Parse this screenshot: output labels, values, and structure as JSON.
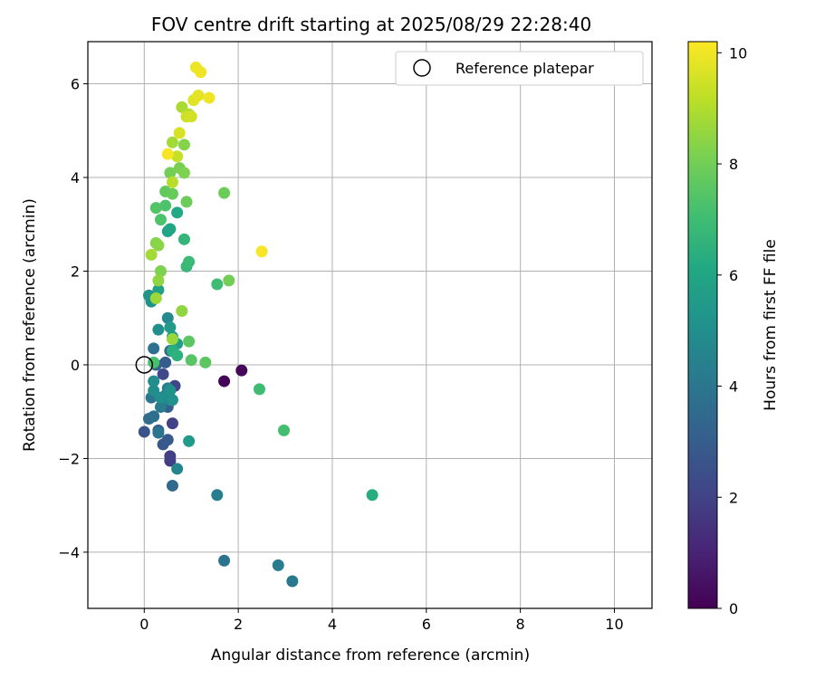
{
  "chart_data": {
    "type": "scatter",
    "title": "FOV centre drift starting at 2025/08/29 22:28:40",
    "xlabel": "Angular distance from reference (arcmin)",
    "ylabel": "Rotation from reference (arcmin)",
    "xlim": [
      -1.2,
      10.8
    ],
    "ylim": [
      -5.2,
      6.9
    ],
    "x_ticks": [
      0,
      2,
      4,
      6,
      8,
      10
    ],
    "y_ticks": [
      -4,
      -2,
      0,
      2,
      4,
      6
    ],
    "grid": true,
    "legend": {
      "placement": "top-right",
      "entries": [
        "Reference platepar"
      ]
    },
    "reference_point": {
      "x": 0,
      "y": 0
    },
    "colorbar": {
      "label": "Hours from first FF file",
      "range": [
        0,
        10.2
      ],
      "ticks": [
        0,
        2,
        4,
        6,
        8,
        10
      ],
      "colormap": "viridis"
    },
    "points": [
      {
        "x": 1.7,
        "y": -0.35,
        "c": 0.1
      },
      {
        "x": 2.07,
        "y": -0.12,
        "c": 0.2
      },
      {
        "x": 0.55,
        "y": -1.95,
        "c": 1.9
      },
      {
        "x": 0.55,
        "y": -2.05,
        "c": 1.8
      },
      {
        "x": 0.6,
        "y": -1.25,
        "c": 2.0
      },
      {
        "x": 0.4,
        "y": -0.2,
        "c": 2.2
      },
      {
        "x": 0.65,
        "y": -0.45,
        "c": 2.1
      },
      {
        "x": 0.0,
        "y": -1.43,
        "c": 2.6
      },
      {
        "x": 0.4,
        "y": -1.7,
        "c": 2.8
      },
      {
        "x": 0.5,
        "y": -1.6,
        "c": 2.9
      },
      {
        "x": 0.3,
        "y": -1.4,
        "c": 3.0
      },
      {
        "x": 0.5,
        "y": -0.9,
        "c": 3.1
      },
      {
        "x": 0.45,
        "y": 0.05,
        "c": 3.0
      },
      {
        "x": 0.25,
        "y": 0.0,
        "c": 3.2
      },
      {
        "x": 0.55,
        "y": 0.3,
        "c": 3.3
      },
      {
        "x": 0.6,
        "y": -2.58,
        "c": 3.5
      },
      {
        "x": 0.1,
        "y": -1.15,
        "c": 3.6
      },
      {
        "x": 0.2,
        "y": -1.1,
        "c": 3.7
      },
      {
        "x": 0.2,
        "y": 0.35,
        "c": 3.8
      },
      {
        "x": 0.15,
        "y": -0.7,
        "c": 4.0
      },
      {
        "x": 0.3,
        "y": -1.45,
        "c": 4.0
      },
      {
        "x": 0.35,
        "y": -0.9,
        "c": 4.2
      },
      {
        "x": 0.45,
        "y": -0.65,
        "c": 4.3
      },
      {
        "x": 0.5,
        "y": -0.5,
        "c": 4.4
      },
      {
        "x": 0.55,
        "y": -0.75,
        "c": 4.5
      },
      {
        "x": 0.7,
        "y": -2.22,
        "c": 4.6
      },
      {
        "x": 1.55,
        "y": -2.78,
        "c": 4.3
      },
      {
        "x": 1.7,
        "y": -4.18,
        "c": 3.9
      },
      {
        "x": 2.85,
        "y": -4.28,
        "c": 4.2
      },
      {
        "x": 3.15,
        "y": -4.62,
        "c": 4.1
      },
      {
        "x": 0.5,
        "y": 1.0,
        "c": 4.8
      },
      {
        "x": 0.3,
        "y": 0.75,
        "c": 5.0
      },
      {
        "x": 0.15,
        "y": 1.35,
        "c": 5.1
      },
      {
        "x": 0.1,
        "y": 1.48,
        "c": 5.2
      },
      {
        "x": 0.2,
        "y": -0.55,
        "c": 4.9
      },
      {
        "x": 0.35,
        "y": -0.7,
        "c": 5.0
      },
      {
        "x": 0.55,
        "y": -0.55,
        "c": 5.1
      },
      {
        "x": 0.6,
        "y": -0.75,
        "c": 5.2
      },
      {
        "x": 0.2,
        "y": -0.35,
        "c": 5.0
      },
      {
        "x": 0.95,
        "y": -1.63,
        "c": 5.5
      },
      {
        "x": 0.55,
        "y": 0.8,
        "c": 5.5
      },
      {
        "x": 0.6,
        "y": 0.6,
        "c": 5.6
      },
      {
        "x": 0.7,
        "y": 0.45,
        "c": 5.7
      },
      {
        "x": 0.3,
        "y": 1.6,
        "c": 5.8
      },
      {
        "x": 0.5,
        "y": 2.85,
        "c": 5.9
      },
      {
        "x": 0.55,
        "y": 2.9,
        "c": 6.0
      },
      {
        "x": 0.7,
        "y": 3.25,
        "c": 6.1
      },
      {
        "x": 4.85,
        "y": -2.78,
        "c": 6.3
      },
      {
        "x": 0.6,
        "y": 0.3,
        "c": 6.4
      },
      {
        "x": 0.7,
        "y": 0.2,
        "c": 6.5
      },
      {
        "x": 0.85,
        "y": 2.68,
        "c": 6.7
      },
      {
        "x": 0.9,
        "y": 2.1,
        "c": 6.8
      },
      {
        "x": 0.95,
        "y": 2.2,
        "c": 6.9
      },
      {
        "x": 1.55,
        "y": 1.72,
        "c": 7.0
      },
      {
        "x": 2.45,
        "y": -0.52,
        "c": 7.0
      },
      {
        "x": 2.97,
        "y": -1.4,
        "c": 7.1
      },
      {
        "x": 0.2,
        "y": 0.05,
        "c": 7.2
      },
      {
        "x": 0.35,
        "y": 3.1,
        "c": 7.3
      },
      {
        "x": 0.25,
        "y": 3.35,
        "c": 7.4
      },
      {
        "x": 0.45,
        "y": 3.4,
        "c": 7.3
      },
      {
        "x": 1.0,
        "y": 0.1,
        "c": 7.5
      },
      {
        "x": 1.3,
        "y": 0.05,
        "c": 7.6
      },
      {
        "x": 0.95,
        "y": 0.5,
        "c": 7.6
      },
      {
        "x": 0.45,
        "y": 3.7,
        "c": 7.7
      },
      {
        "x": 0.6,
        "y": 3.65,
        "c": 7.8
      },
      {
        "x": 0.9,
        "y": 3.48,
        "c": 7.9
      },
      {
        "x": 1.7,
        "y": 3.67,
        "c": 7.9
      },
      {
        "x": 1.8,
        "y": 1.8,
        "c": 8.0
      },
      {
        "x": 0.55,
        "y": 4.1,
        "c": 8.0
      },
      {
        "x": 0.75,
        "y": 4.2,
        "c": 8.1
      },
      {
        "x": 0.85,
        "y": 4.1,
        "c": 8.2
      },
      {
        "x": 0.85,
        "y": 4.7,
        "c": 8.3
      },
      {
        "x": 0.25,
        "y": 2.6,
        "c": 8.3
      },
      {
        "x": 0.3,
        "y": 2.55,
        "c": 8.4
      },
      {
        "x": 0.35,
        "y": 2.0,
        "c": 8.2
      },
      {
        "x": 0.3,
        "y": 1.8,
        "c": 8.5
      },
      {
        "x": 0.8,
        "y": 1.15,
        "c": 8.5
      },
      {
        "x": 0.6,
        "y": 0.55,
        "c": 8.6
      },
      {
        "x": 0.25,
        "y": 1.42,
        "c": 8.7
      },
      {
        "x": 0.15,
        "y": 2.35,
        "c": 8.8
      },
      {
        "x": 0.6,
        "y": 4.75,
        "c": 8.8
      },
      {
        "x": 0.8,
        "y": 5.5,
        "c": 8.9
      },
      {
        "x": 0.95,
        "y": 5.35,
        "c": 9.0
      },
      {
        "x": 0.6,
        "y": 3.9,
        "c": 9.1
      },
      {
        "x": 0.7,
        "y": 4.45,
        "c": 9.3
      },
      {
        "x": 0.9,
        "y": 5.3,
        "c": 9.4
      },
      {
        "x": 1.0,
        "y": 5.3,
        "c": 9.5
      },
      {
        "x": 0.75,
        "y": 4.95,
        "c": 9.6
      },
      {
        "x": 1.05,
        "y": 5.65,
        "c": 9.7
      },
      {
        "x": 1.15,
        "y": 5.75,
        "c": 9.8
      },
      {
        "x": 1.1,
        "y": 6.35,
        "c": 9.9
      },
      {
        "x": 1.2,
        "y": 6.25,
        "c": 10.0
      },
      {
        "x": 1.38,
        "y": 5.7,
        "c": 10.0
      },
      {
        "x": 0.5,
        "y": 4.5,
        "c": 10.1
      },
      {
        "x": 2.5,
        "y": 2.42,
        "c": 10.1
      }
    ]
  }
}
